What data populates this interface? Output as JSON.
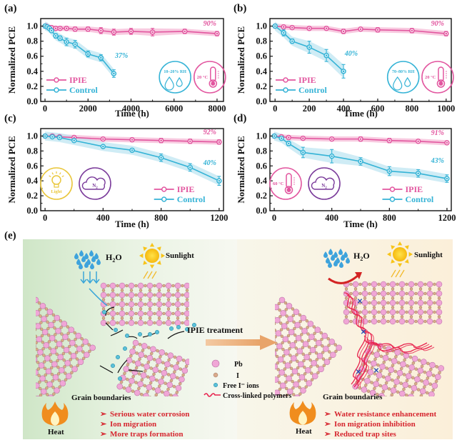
{
  "colors": {
    "ipie": "#e2569f",
    "ipie_band": "#f5b8d6",
    "control": "#35b3d6",
    "control_band": "#bfe5f2",
    "axis": "#111111",
    "light_icon": "#e9c63a",
    "n2_icon": "#7a3a9a",
    "red_text": "#d6262f",
    "polymer": "#e8234e",
    "pb": "#f0a6d6",
    "i": "#d9a98a",
    "free_i": "#5bc0d8"
  },
  "chart_data": [
    {
      "panel": "(a)",
      "type": "line",
      "xlabel": "Time (h)",
      "ylabel": "Normalized PCE",
      "xlim": [
        -200,
        8300
      ],
      "ylim": [
        0.0,
        1.1
      ],
      "xticks": [
        "0",
        "2000",
        "4000",
        "6000",
        "8000"
      ],
      "xtick_values": [
        0,
        2000,
        4000,
        6000,
        8000
      ],
      "yticks": [
        "0.0",
        "0.2",
        "0.4",
        "0.6",
        "0.8",
        "1.0"
      ],
      "ytick_values": [
        0.0,
        0.2,
        0.4,
        0.6,
        0.8,
        1.0
      ],
      "legend": [
        "IPIE",
        "Control"
      ],
      "legend_position": "bottom-left",
      "series": [
        {
          "name": "IPIE",
          "x": [
            0,
            50,
            100,
            200,
            300,
            500,
            700,
            1000,
            1400,
            2000,
            2600,
            3200,
            4000,
            5000,
            6500,
            8000
          ],
          "y": [
            1.0,
            1.0,
            0.99,
            0.98,
            0.98,
            0.97,
            0.97,
            0.97,
            0.96,
            0.96,
            0.94,
            0.92,
            0.93,
            0.92,
            0.93,
            0.9
          ],
          "err": [
            0.01,
            0.01,
            0.01,
            0.01,
            0.01,
            0.02,
            0.02,
            0.02,
            0.03,
            0.03,
            0.04,
            0.04,
            0.04,
            0.05,
            0.03,
            0.03
          ],
          "end_label": "90%"
        },
        {
          "name": "Control",
          "x": [
            0,
            100,
            200,
            300,
            500,
            700,
            1000,
            1400,
            2000,
            2600,
            3200
          ],
          "y": [
            1.0,
            0.99,
            0.97,
            0.94,
            0.87,
            0.84,
            0.79,
            0.76,
            0.63,
            0.58,
            0.37
          ],
          "err": [
            0.01,
            0.01,
            0.02,
            0.02,
            0.03,
            0.03,
            0.05,
            0.05,
            0.04,
            0.04,
            0.05
          ],
          "end_label": "37%"
        }
      ],
      "badges": [
        {
          "type": "humidity",
          "label": "10–20% RH"
        },
        {
          "type": "temperature",
          "label": "20 °C"
        }
      ]
    },
    {
      "panel": "(b)",
      "type": "line",
      "xlabel": "Time (h)",
      "ylabel": "Normalized PCE",
      "xlim": [
        -30,
        1030
      ],
      "ylim": [
        0.0,
        1.1
      ],
      "xticks": [
        "0",
        "200",
        "400",
        "600",
        "800",
        "1000"
      ],
      "xtick_values": [
        0,
        200,
        400,
        600,
        800,
        1000
      ],
      "yticks": [
        "0.0",
        "0.2",
        "0.4",
        "0.6",
        "0.8",
        "1.0"
      ],
      "ytick_values": [
        0.0,
        0.2,
        0.4,
        0.6,
        0.8,
        1.0
      ],
      "legend": [
        "IPIE",
        "Control"
      ],
      "legend_position": "bottom-left",
      "series": [
        {
          "name": "IPIE",
          "x": [
            0,
            50,
            100,
            200,
            300,
            400,
            500,
            600,
            800,
            1000
          ],
          "y": [
            1.0,
            0.99,
            0.98,
            0.97,
            0.97,
            0.93,
            0.96,
            0.95,
            0.94,
            0.9
          ],
          "err": [
            0.01,
            0.01,
            0.02,
            0.02,
            0.02,
            0.03,
            0.02,
            0.03,
            0.03,
            0.03
          ],
          "end_label": "90%"
        },
        {
          "name": "Control",
          "x": [
            0,
            50,
            100,
            200,
            300,
            400
          ],
          "y": [
            1.0,
            0.91,
            0.8,
            0.72,
            0.61,
            0.4
          ],
          "err": [
            0.01,
            0.04,
            0.03,
            0.08,
            0.08,
            0.09
          ],
          "end_label": "40%"
        }
      ],
      "badges": [
        {
          "type": "humidity",
          "label": "70–80% RH"
        },
        {
          "type": "temperature",
          "label": "20 °C"
        }
      ]
    },
    {
      "panel": "(c)",
      "type": "line",
      "xlabel": "Time (h)",
      "ylabel": "Normalized PCE",
      "xlim": [
        -30,
        1230
      ],
      "ylim": [
        0.0,
        1.1
      ],
      "xticks": [
        "0",
        "400",
        "800",
        "1200"
      ],
      "xtick_values": [
        0,
        400,
        800,
        1200
      ],
      "yticks": [
        "0.0",
        "0.2",
        "0.4",
        "0.6",
        "0.8",
        "1.0"
      ],
      "ytick_values": [
        0.0,
        0.2,
        0.4,
        0.6,
        0.8,
        1.0
      ],
      "legend": [
        "IPIE",
        "Control"
      ],
      "legend_position": "bottom-right",
      "series": [
        {
          "name": "IPIE",
          "x": [
            0,
            50,
            100,
            200,
            400,
            600,
            800,
            1000,
            1200
          ],
          "y": [
            1.0,
            1.0,
            0.99,
            0.98,
            0.96,
            0.95,
            0.94,
            0.93,
            0.92
          ],
          "err": [
            0.01,
            0.01,
            0.01,
            0.01,
            0.02,
            0.02,
            0.03,
            0.03,
            0.03
          ],
          "end_label": "92%"
        },
        {
          "name": "Control",
          "x": [
            0,
            50,
            100,
            200,
            400,
            600,
            800,
            1000,
            1200
          ],
          "y": [
            1.0,
            0.99,
            0.98,
            0.94,
            0.86,
            0.81,
            0.71,
            0.58,
            0.4
          ],
          "err": [
            0.01,
            0.01,
            0.02,
            0.02,
            0.02,
            0.02,
            0.05,
            0.05,
            0.06
          ],
          "end_label": "40%"
        }
      ],
      "badges": [
        {
          "type": "light",
          "label": "Light"
        },
        {
          "type": "n2",
          "label": "N2"
        }
      ]
    },
    {
      "panel": "(d)",
      "type": "line",
      "xlabel": "Time (h)",
      "ylabel": "Normalized PCE",
      "xlim": [
        -30,
        1230
      ],
      "ylim": [
        0.0,
        1.1
      ],
      "xticks": [
        "0",
        "400",
        "800",
        "1200"
      ],
      "xtick_values": [
        0,
        400,
        800,
        1200
      ],
      "yticks": [
        "0.0",
        "0.2",
        "0.4",
        "0.6",
        "0.8",
        "1.0"
      ],
      "ytick_values": [
        0.0,
        0.2,
        0.4,
        0.6,
        0.8,
        1.0
      ],
      "legend": [
        "IPIE",
        "Control"
      ],
      "legend_position": "bottom-right",
      "series": [
        {
          "name": "IPIE",
          "x": [
            0,
            50,
            100,
            200,
            400,
            600,
            800,
            1000,
            1200
          ],
          "y": [
            1.0,
            0.99,
            0.98,
            0.97,
            0.96,
            0.96,
            0.94,
            0.93,
            0.91
          ],
          "err": [
            0.01,
            0.01,
            0.01,
            0.02,
            0.02,
            0.03,
            0.03,
            0.02,
            0.02
          ],
          "end_label": "91%"
        },
        {
          "name": "Control",
          "x": [
            0,
            50,
            100,
            200,
            400,
            600,
            800,
            1000,
            1200
          ],
          "y": [
            1.0,
            0.97,
            0.9,
            0.78,
            0.73,
            0.66,
            0.53,
            0.5,
            0.43
          ],
          "err": [
            0.01,
            0.02,
            0.03,
            0.07,
            0.09,
            0.05,
            0.06,
            0.05,
            0.05
          ],
          "end_label": "43%"
        }
      ],
      "badges": [
        {
          "type": "temperature",
          "label": "60 °C"
        },
        {
          "type": "n2",
          "label": "N2"
        }
      ]
    }
  ],
  "schematic": {
    "panel_label": "(e)",
    "left": {
      "water_label": "H2O",
      "sun_label": "Sunlight",
      "grain_label": "Grain boundaries",
      "heat_label": "Heat",
      "bullets": [
        "Serious water corrosion",
        "Ion migration",
        "More traps formation"
      ]
    },
    "arrow_label": "IPIE treatment",
    "legend": [
      {
        "symbol": "pb",
        "label": "Pb"
      },
      {
        "symbol": "i",
        "label": "I"
      },
      {
        "symbol": "free_i",
        "label": "Free I⁻ ions"
      },
      {
        "symbol": "polymer",
        "label": "Cross-linked polymers"
      }
    ],
    "right": {
      "water_label": "H2O",
      "sun_label": "Sunlight",
      "grain_label": "Grain boundaries",
      "heat_label": "Heat",
      "bullets": [
        "Water resistance enhancement",
        "Ion migration inhibition",
        "Reduced trap sites"
      ]
    }
  }
}
